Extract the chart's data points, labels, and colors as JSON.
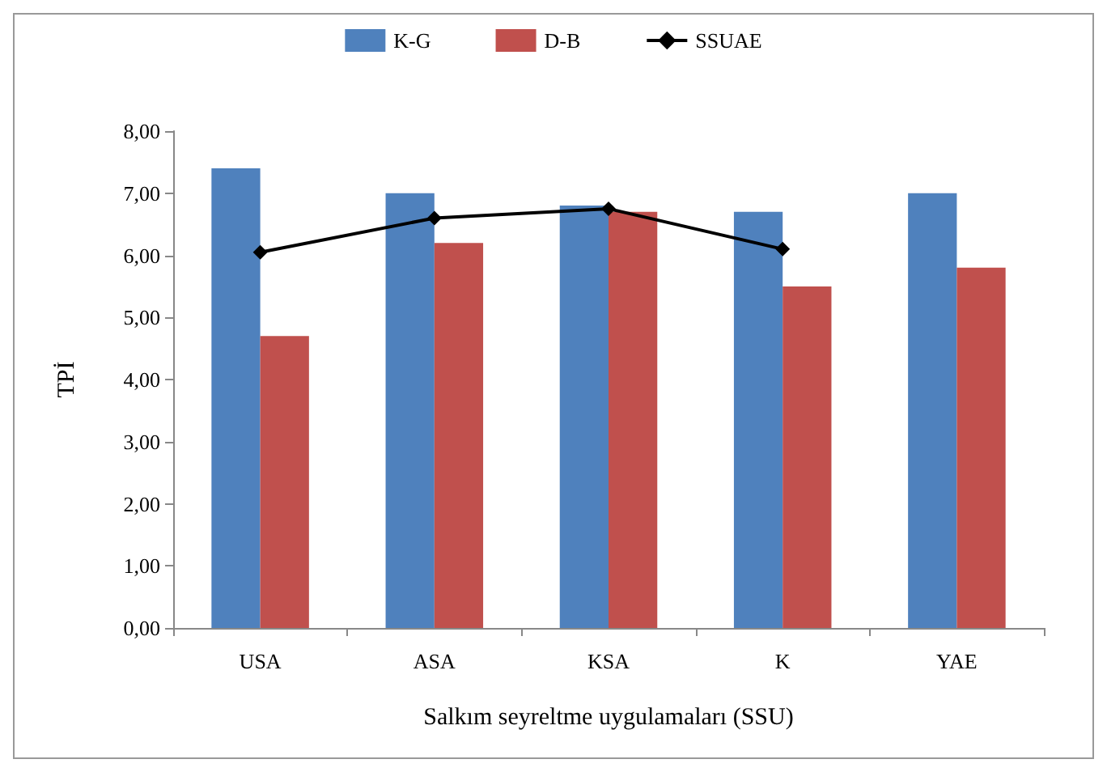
{
  "chart_data": {
    "type": "bar",
    "xlabel": "Salkım seyreltme uygulamaları (SSU)",
    "ylabel": "TPİ",
    "categories": [
      "USA",
      "ASA",
      "KSA",
      "K",
      "YAE"
    ],
    "series": [
      {
        "name": "K-G",
        "color": "#4f81bd",
        "values": [
          7.4,
          7.0,
          6.8,
          6.7,
          7.0
        ]
      },
      {
        "name": "D-B",
        "color": "#c0504d",
        "values": [
          4.7,
          6.2,
          6.7,
          5.5,
          5.8
        ]
      },
      {
        "name": "SSUAE",
        "type": "line",
        "color": "#000000",
        "values": [
          6.05,
          6.6,
          6.75,
          6.1,
          null
        ]
      }
    ],
    "ylim": [
      0,
      8
    ],
    "yticks": [
      {
        "value": 0,
        "label": "0,00"
      },
      {
        "value": 1,
        "label": "1,00"
      },
      {
        "value": 2,
        "label": "2,00"
      },
      {
        "value": 3,
        "label": "3,00"
      },
      {
        "value": 4,
        "label": "4,00"
      },
      {
        "value": 5,
        "label": "5,00"
      },
      {
        "value": 6,
        "label": "6,00"
      },
      {
        "value": 7,
        "label": "7,00"
      },
      {
        "value": 8,
        "label": "8,00"
      }
    ],
    "legend": "top",
    "marker": "diamond",
    "grid": false
  }
}
